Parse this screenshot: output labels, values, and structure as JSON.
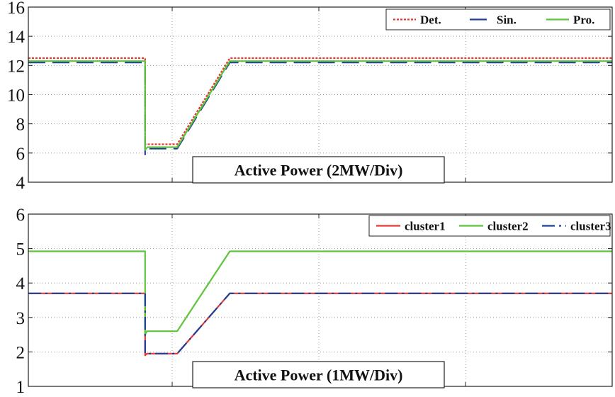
{
  "chart_data": [
    {
      "type": "line",
      "caption": "Active Power (2MW/Div)",
      "ylim": [
        4,
        16
      ],
      "yticks": [
        4,
        6,
        8,
        10,
        12,
        14,
        16
      ],
      "ytick_labels": [
        "4",
        "6",
        "8",
        "10",
        "12",
        "14",
        "16"
      ],
      "xlim": [
        0,
        1
      ],
      "grid": true,
      "legend_position": "top-right",
      "series": [
        {
          "name": "Det.",
          "color": "#e53935",
          "dash": "dotted",
          "points": [
            [
              0,
              12.5
            ],
            [
              0.2,
              12.5
            ],
            [
              0.2,
              6.6
            ],
            [
              0.215,
              6.6
            ],
            [
              0.223,
              6.6
            ],
            [
              0.255,
              6.6
            ],
            [
              0.345,
              12.5
            ],
            [
              1,
              12.5
            ]
          ]
        },
        {
          "name": "Sin.",
          "color": "#1f3f99",
          "dash": "dashed",
          "points": [
            [
              0,
              12.2
            ],
            [
              0.2,
              12.2
            ],
            [
              0.2,
              5.9
            ],
            [
              0.204,
              6.3
            ],
            [
              0.223,
              6.3
            ],
            [
              0.255,
              6.3
            ],
            [
              0.345,
              12.2
            ],
            [
              1,
              12.2
            ]
          ]
        },
        {
          "name": "Pro.",
          "color": "#5ec43a",
          "dash": "solid",
          "points": [
            [
              0,
              12.3
            ],
            [
              0.2,
              12.3
            ],
            [
              0.2,
              6.2
            ],
            [
              0.204,
              6.4
            ],
            [
              0.223,
              6.4
            ],
            [
              0.255,
              6.4
            ],
            [
              0.345,
              12.3
            ],
            [
              1,
              12.3
            ]
          ]
        }
      ]
    },
    {
      "type": "line",
      "caption": "Active Power (1MW/Div)",
      "ylim": [
        1,
        6
      ],
      "yticks": [
        1,
        2,
        3,
        4,
        5,
        6
      ],
      "ytick_labels": [
        "1",
        "2",
        "3",
        "4",
        "5",
        "6"
      ],
      "xlim": [
        0,
        1
      ],
      "grid": true,
      "legend_position": "top-right",
      "series": [
        {
          "name": "cluster1",
          "color": "#e53935",
          "dash": "solid",
          "points": [
            [
              0,
              3.7
            ],
            [
              0.2,
              3.7
            ],
            [
              0.2,
              1.9
            ],
            [
              0.203,
              1.95
            ],
            [
              0.223,
              1.95
            ],
            [
              0.255,
              1.95
            ],
            [
              0.345,
              3.7
            ],
            [
              1,
              3.7
            ]
          ]
        },
        {
          "name": "cluster2",
          "color": "#5ec43a",
          "dash": "solid",
          "points": [
            [
              0,
              4.92
            ],
            [
              0.2,
              4.92
            ],
            [
              0.2,
              2.5
            ],
            [
              0.203,
              2.6
            ],
            [
              0.223,
              2.6
            ],
            [
              0.255,
              2.6
            ],
            [
              0.345,
              4.92
            ],
            [
              1,
              4.92
            ]
          ]
        },
        {
          "name": "cluster3",
          "color": "#1f3f99",
          "dash": "dashdot",
          "points": [
            [
              0,
              3.7
            ],
            [
              0.2,
              3.7
            ],
            [
              0.2,
              1.95
            ],
            [
              0.203,
              1.95
            ],
            [
              0.223,
              1.95
            ],
            [
              0.255,
              1.95
            ],
            [
              0.345,
              3.7
            ],
            [
              1,
              3.7
            ]
          ]
        }
      ]
    }
  ]
}
